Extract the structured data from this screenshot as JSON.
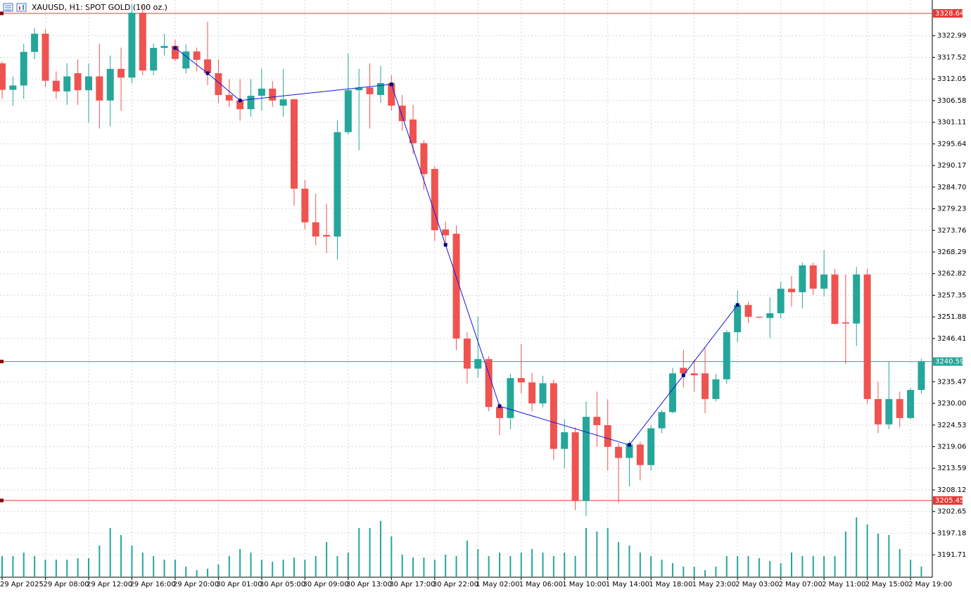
{
  "chart_data": {
    "type": "candlestick",
    "title": "XAUUSD, H1:  SPOT GOLD (100 oz.)",
    "up_color": "#26a69a",
    "down_color": "#ef5350",
    "volume_color": "#26a69a",
    "grid": true,
    "categories": [
      "29 Apr 2025",
      null,
      null,
      null,
      "29 Apr 08:00",
      null,
      null,
      null,
      "29 Apr 12:00",
      null,
      null,
      null,
      "29 Apr 16:00",
      null,
      null,
      null,
      "29 Apr 20:00",
      null,
      null,
      null,
      "30 Apr 01:00",
      null,
      null,
      null,
      "30 Apr 05:00",
      null,
      null,
      null,
      "30 Apr 09:00",
      null,
      null,
      null,
      "30 Apr 13:00",
      null,
      null,
      null,
      "30 Apr 17:00",
      null,
      null,
      null,
      "30 Apr 22:00",
      null,
      null,
      null,
      "1 May 02:00",
      null,
      null,
      null,
      "1 May 06:00",
      null,
      null,
      null,
      "1 May 10:00",
      null,
      null,
      null,
      "1 May 14:00",
      null,
      null,
      null,
      "1 May 18:00",
      null,
      null,
      null,
      "1 May 23:00",
      null,
      null,
      null,
      "2 May 03:00",
      null,
      null,
      null,
      "2 May 07:00",
      null,
      null,
      null,
      "2 May 11:00",
      null,
      null,
      null,
      "2 May 15:00",
      null,
      null,
      null,
      "2 May 19:00",
      null
    ],
    "open": [
      3316,
      3309.3,
      3310.4,
      3318.9,
      3323.5,
      3311.6,
      3308.9,
      3313.5,
      3309.2,
      3312.7,
      3306.6,
      3314.6,
      3312.4,
      3328.8,
      3314.2,
      3319.9,
      3320.4,
      3314.7,
      3319,
      3317,
      3313.5,
      3308,
      3306.6,
      3304.4,
      3307.8,
      3309.6,
      3305.3,
      3306.9,
      3284.3,
      3275.8,
      3272.6,
      3272.2,
      3298.6,
      3309.2,
      3309.9,
      3308,
      3311,
      3305.3,
      3301.8,
      3295.8,
      3289.3,
      3274,
      3272.9,
      3246.4,
      3238.8,
      3241.2,
      3229.1,
      3226.3,
      3236.4,
      3235.3,
      3230,
      3235.1,
      3218.5,
      3222.7,
      3205.3,
      3226.6,
      3224.5,
      3219,
      3216.2,
      3219.6,
      3214.4,
      3223.7,
      3227.8,
      3239,
      3237.6,
      3237.6,
      3231.1,
      3236.1,
      3248,
      3254.9,
      3251.9,
      3251.6,
      3252.8,
      3259,
      3258.1,
      3264.9,
      3259,
      3262.6,
      3250.5,
      3250.2,
      3262.6,
      3231.1,
      3224.7,
      3231.1,
      3226.3,
      3233.4
    ],
    "high": [
      3316.5,
      3312.7,
      3321,
      3325,
      3324.6,
      3314,
      3316,
      3317,
      3316,
      3321,
      3318,
      3320,
      3331,
      3331,
      3321,
      3323.5,
      3322,
      3320.8,
      3320,
      3326.5,
      3317,
      3312,
      3312,
      3312,
      3314.6,
      3311.5,
      3314.6,
      3307,
      3286.5,
      3283,
      3280.5,
      3301.5,
      3318.5,
      3314.6,
      3316,
      3315.4,
      3313,
      3308,
      3305.5,
      3296.5,
      3290,
      3276,
      3275,
      3248,
      3252,
      3242,
      3230,
      3237.5,
      3245,
      3237.7,
      3237,
      3236,
      3226,
      3224,
      3230.5,
      3233,
      3231,
      3220,
      3220.5,
      3220.3,
      3224.5,
      3228.3,
      3239,
      3243.5,
      3241,
      3244,
      3237.5,
      3248.5,
      3258.5,
      3255.7,
      3251.9,
      3256.8,
      3260.8,
      3262.2,
      3265.6,
      3265.6,
      3268.8,
      3264,
      3262.6,
      3264.5,
      3264,
      3235.5,
      3240.5,
      3233,
      3233.9,
      3241.3
    ],
    "low": [
      3307,
      3305.3,
      3307,
      3317,
      3310,
      3307,
      3305.5,
      3305.5,
      3301,
      3299.5,
      3300,
      3304,
      3311,
      3313,
      3313,
      3318,
      3316.5,
      3313.5,
      3314,
      3310.5,
      3306,
      3305,
      3301.5,
      3302.5,
      3304,
      3305,
      3302.5,
      3280,
      3274,
      3270,
      3268,
      3266.4,
      3298,
      3294,
      3299.5,
      3306,
      3304,
      3299,
      3293,
      3284,
      3271,
      3270,
      3243.5,
      3235,
      3236.5,
      3228,
      3222,
      3223.5,
      3232.5,
      3228,
      3229,
      3215.7,
      3213.6,
      3203,
      3201.5,
      3219,
      3213,
      3204.8,
      3209,
      3210.5,
      3213,
      3222.5,
      3227.5,
      3234,
      3233,
      3227.5,
      3230.5,
      3235,
      3245.5,
      3250.4,
      3251.5,
      3246.5,
      3251.5,
      3254.5,
      3254,
      3257.5,
      3257,
      3250,
      3240,
      3244.5,
      3230,
      3222.5,
      3223.5,
      3224,
      3226,
      3232.5
    ],
    "close": [
      3309.3,
      3310.4,
      3318.9,
      3323.5,
      3311.6,
      3308.9,
      3312.7,
      3309.2,
      3312.7,
      3306.6,
      3314.6,
      3312.4,
      3328.8,
      3314.2,
      3319.9,
      3320.4,
      3317.1,
      3319,
      3316.9,
      3313.5,
      3308,
      3306.6,
      3304.4,
      3307.8,
      3309.6,
      3306.6,
      3306.9,
      3284.3,
      3275.8,
      3272.2,
      3272.2,
      3298.6,
      3309.2,
      3309.9,
      3308.2,
      3311,
      3305.3,
      3301.4,
      3295.8,
      3288,
      3273.8,
      3272.5,
      3246.4,
      3238.8,
      3241.2,
      3229.1,
      3226.3,
      3236.4,
      3235.3,
      3230,
      3235.1,
      3218.5,
      3222.7,
      3205.3,
      3226.6,
      3224.5,
      3219,
      3216.2,
      3219.6,
      3214.4,
      3223.7,
      3227.8,
      3237.6,
      3237.6,
      3237.1,
      3231.1,
      3236.1,
      3248,
      3254.9,
      3251.9,
      3251.7,
      3252.8,
      3259,
      3258.1,
      3264.9,
      3259,
      3262.6,
      3250.1,
      3250.2,
      3262.6,
      3231.1,
      3224.7,
      3231.1,
      3226.3,
      3233.4,
      3240.6
    ],
    "volumes": [
      30,
      30,
      35,
      30,
      25,
      25,
      25,
      27,
      27,
      45,
      70,
      60,
      45,
      35,
      30,
      25,
      25,
      15,
      10,
      12,
      18,
      30,
      40,
      35,
      25,
      22,
      25,
      28,
      25,
      30,
      50,
      30,
      35,
      70,
      70,
      80,
      58,
      32,
      28,
      28,
      25,
      32,
      30,
      52,
      40,
      30,
      35,
      30,
      35,
      40,
      35,
      30,
      35,
      30,
      70,
      65,
      70,
      50,
      45,
      35,
      30,
      25,
      20,
      15,
      15,
      10,
      15,
      30,
      30,
      30,
      27,
      23,
      20,
      35,
      30,
      30,
      30,
      30,
      65,
      85,
      75,
      62,
      60,
      40,
      25,
      15
    ],
    "vlim": [
      0,
      100
    ],
    "ylim": [
      3186.04,
      3332.02
    ],
    "yticks": [
      3322.99,
      3317.52,
      3312.05,
      3306.58,
      3301.11,
      3295.64,
      3290.17,
      {
        "value": 3284.7,
        "label": "3284.70"
      },
      3279.23,
      3273.76,
      3268.29,
      3262.82,
      3257.35,
      3251.88,
      3246.41,
      3235.47,
      {
        "value": 3230,
        "label": "3230.00"
      },
      3224.53,
      3219.06,
      3213.59,
      3208.12,
      3202.65,
      3197.18,
      3191.71
    ],
    "hlines": [
      {
        "value": 3328.64,
        "color": "#e53935"
      },
      {
        "value": 3240.59,
        "color": "#26a69a"
      },
      {
        "value": 3205.45,
        "color": "#e53935"
      }
    ],
    "zigzag": {
      "color": "#1515e0",
      "x": [
        16,
        19,
        22,
        36,
        41,
        46,
        58,
        63,
        68
      ],
      "values": [
        3319.9,
        3313.5,
        3306.6,
        3310.7,
        3270.1,
        3229.3,
        3219.5,
        3237.1,
        3254.9
      ]
    }
  }
}
